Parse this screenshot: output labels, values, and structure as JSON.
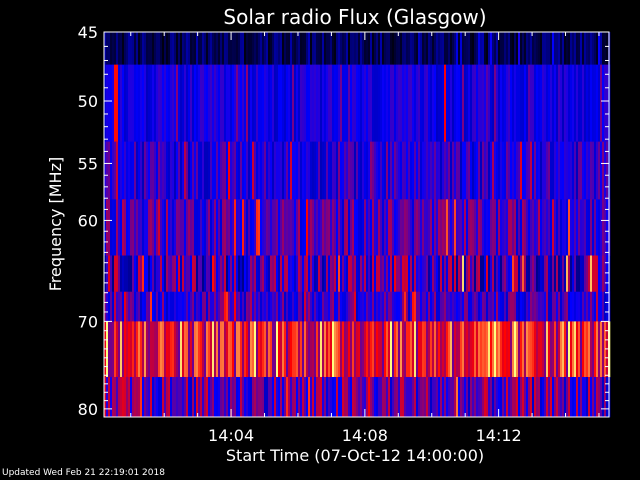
{
  "chart_data": {
    "type": "heatmap",
    "title": "Solar radio Flux (Glasgow)",
    "xlabel": "Start Time (07-Oct-12 14:00:00)",
    "ylabel": "Frequency [MHz]",
    "x_unit": "minutes after 14:00:00",
    "xlim": [
      0.2,
      15.3
    ],
    "xticks": [
      {
        "value": 4,
        "label": "14:04"
      },
      {
        "value": 8,
        "label": "14:08"
      },
      {
        "value": 12,
        "label": "14:12"
      }
    ],
    "y_scale": "log",
    "ylim": [
      45,
      81
    ],
    "yticks": [
      {
        "value": 45,
        "label": "45"
      },
      {
        "value": 50,
        "label": "50"
      },
      {
        "value": 55,
        "label": "55"
      },
      {
        "value": 60,
        "label": "60"
      },
      {
        "value": 70,
        "label": "70"
      },
      {
        "value": 80,
        "label": "80"
      }
    ],
    "colormap": [
      "#000000",
      "#0000ff",
      "#ff0000",
      "#ffff80"
    ],
    "bands": [
      {
        "f_low": 45,
        "f_high": 47.3,
        "base": 0.12,
        "var": 0.1
      },
      {
        "f_low": 47.3,
        "f_high": 53.2,
        "base": 0.33,
        "var": 0.08
      },
      {
        "f_low": 53.2,
        "f_high": 58.1,
        "base": 0.36,
        "var": 0.12
      },
      {
        "f_low": 58.1,
        "f_high": 63.3,
        "base": 0.42,
        "var": 0.14
      },
      {
        "f_low": 63.3,
        "f_high": 66.9,
        "base": 0.4,
        "var": 0.22
      },
      {
        "f_low": 66.9,
        "f_high": 70.0,
        "base": 0.4,
        "var": 0.14
      },
      {
        "f_low": 70.0,
        "f_high": 76.2,
        "base": 0.66,
        "var": 0.2
      },
      {
        "f_low": 76.2,
        "f_high": 81,
        "base": 0.44,
        "var": 0.18
      }
    ],
    "bursts": [
      {
        "t_start": 0.5,
        "t_end": 0.62,
        "f_low": 47.3,
        "f_high": 53.2,
        "level": 0.68
      },
      {
        "t_start": 10.35,
        "t_end": 10.45,
        "f_low": 47.3,
        "f_high": 53.2,
        "level": 0.66
      }
    ]
  },
  "footer": "Updated Wed Feb 21 22:19:01 2018"
}
